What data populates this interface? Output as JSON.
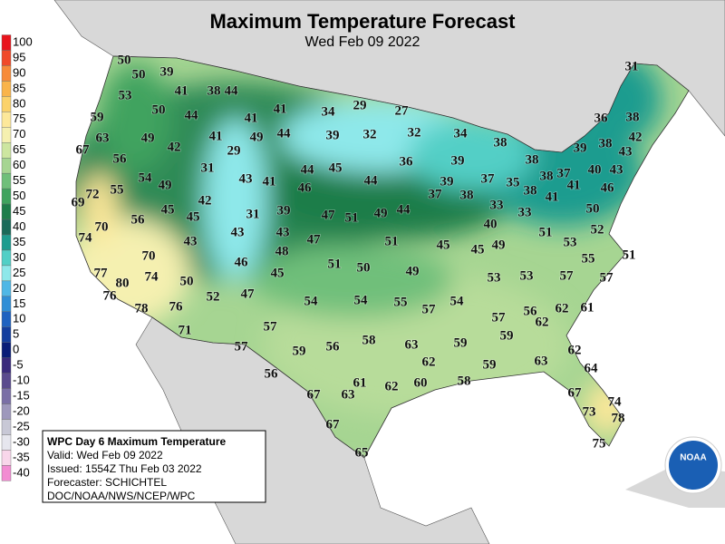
{
  "map": {
    "title": "Maximum Temperature Forecast",
    "subtitle": "Wed Feb 09 2022",
    "legend": {
      "values": [
        100,
        95,
        90,
        85,
        80,
        75,
        70,
        65,
        60,
        55,
        50,
        45,
        40,
        35,
        30,
        25,
        20,
        15,
        10,
        5,
        0,
        -5,
        -10,
        -15,
        -20,
        -25,
        -30,
        -35,
        -40
      ],
      "colors": [
        "#e8141c",
        "#f04a2a",
        "#f78b3a",
        "#f9b44a",
        "#fbd26a",
        "#fde89a",
        "#f5f0b0",
        "#cde6a0",
        "#a6d592",
        "#6fbf7a",
        "#3fa35e",
        "#1e7d4a",
        "#1a6a5a",
        "#1e9c8f",
        "#52cfc6",
        "#8ee8ea",
        "#4fb7e6",
        "#2f8ed6",
        "#1f62c0",
        "#143e9e",
        "#0a1d78",
        "#3a2a7c",
        "#5a4a8e",
        "#7a6fa6",
        "#9e98bc",
        "#c8c8d6",
        "#e6e6ee",
        "#f8d6ea",
        "#f28cd2"
      ]
    },
    "info": [
      "WPC Day 6 Maximum Temperature",
      "Valid: Wed Feb 09 2022",
      "Issued: 1554Z Thu Feb 03 2022",
      "Forecaster: SCHICHTEL",
      "DOC/NOAA/NWS/NCEP/WPC"
    ],
    "logo": "NOAA",
    "temperatures": [
      50,
      50,
      39,
      41,
      38,
      44,
      53,
      50,
      44,
      41,
      41,
      34,
      29,
      27,
      31,
      59,
      63,
      49,
      42,
      41,
      29,
      49,
      44,
      39,
      32,
      32,
      34,
      38,
      36,
      38,
      42,
      39,
      38,
      43,
      67,
      56,
      31,
      44,
      45,
      36,
      39,
      38,
      38,
      37,
      40,
      43,
      54,
      49,
      43,
      41,
      46,
      44,
      39,
      37,
      35,
      38,
      41,
      41,
      46,
      72,
      55,
      42,
      37,
      38,
      69,
      45,
      45,
      31,
      39,
      47,
      51,
      49,
      44,
      33,
      33,
      50,
      70,
      56,
      43,
      43,
      51,
      45,
      40,
      45,
      49,
      51,
      52,
      74,
      43,
      47,
      53,
      70,
      48,
      51,
      50,
      55,
      51,
      77,
      80,
      74,
      50,
      46,
      45,
      49,
      53,
      53,
      57,
      57,
      76,
      78,
      76,
      52,
      47,
      54,
      54,
      55,
      57,
      54,
      62,
      61,
      56,
      62,
      57,
      71,
      57,
      59,
      59,
      56,
      58,
      63,
      59,
      62,
      57,
      62,
      59,
      63,
      56,
      64,
      58,
      67,
      63,
      61,
      62,
      60,
      67,
      74,
      73,
      78,
      67,
      75,
      65
    ]
  }
}
